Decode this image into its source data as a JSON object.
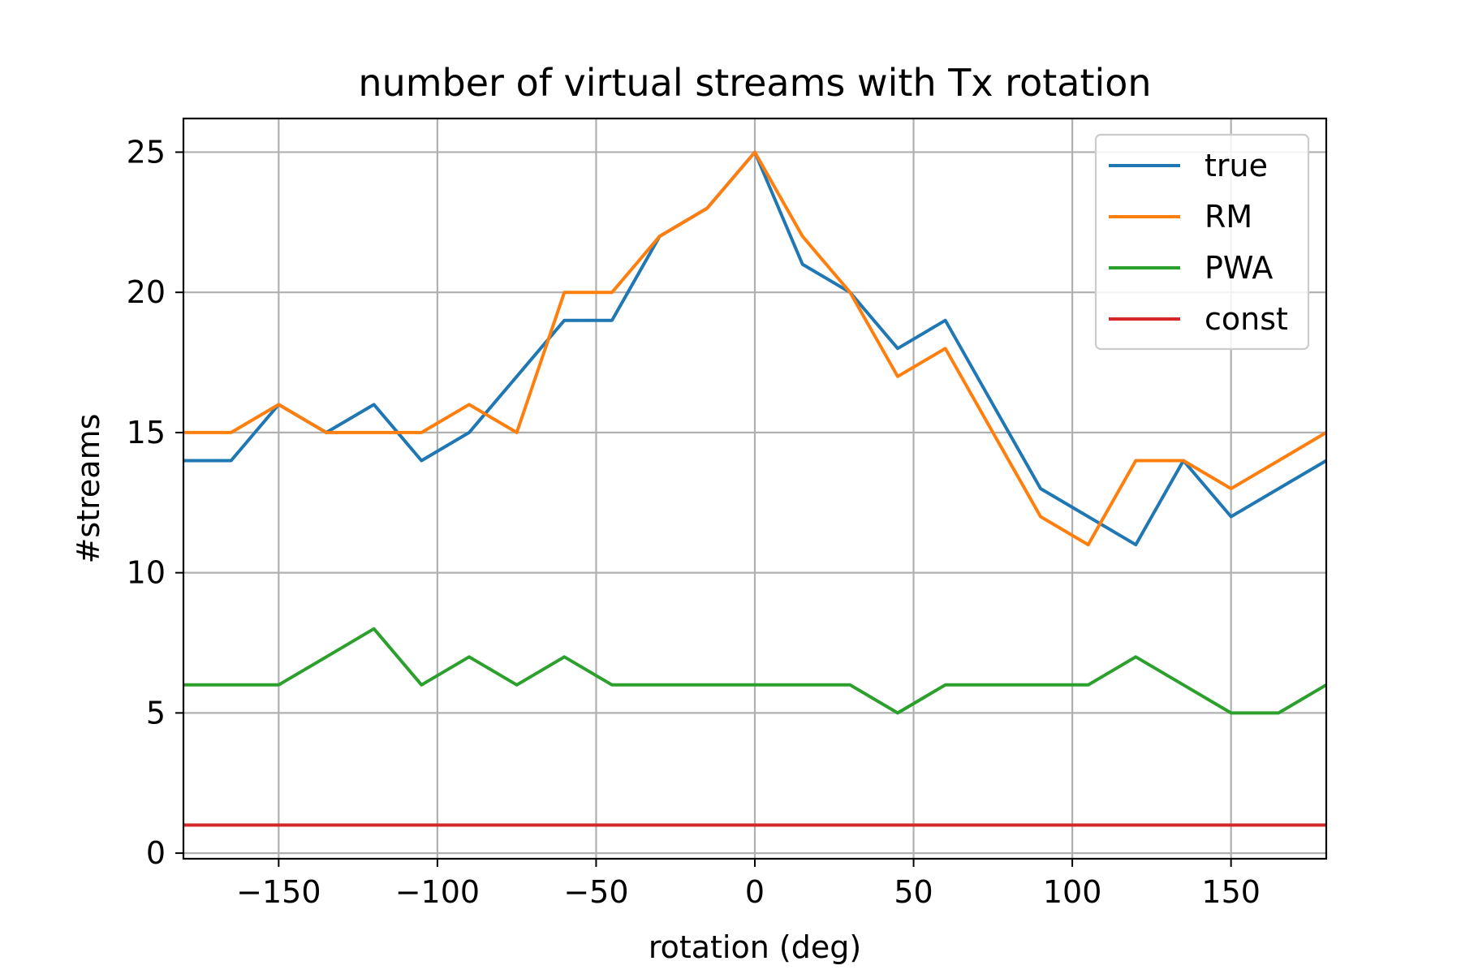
{
  "chart_data": {
    "type": "line",
    "title": "number of virtual streams with Tx rotation",
    "xlabel": "rotation (deg)",
    "ylabel": "#streams",
    "xlim": [
      -180,
      180
    ],
    "ylim": [
      -0.2,
      26.2
    ],
    "xticks": [
      -150,
      -100,
      -50,
      0,
      50,
      100,
      150
    ],
    "xtick_labels": [
      "−150",
      "−100",
      "−50",
      "0",
      "50",
      "100",
      "150"
    ],
    "yticks": [
      0,
      5,
      10,
      15,
      20,
      25
    ],
    "ytick_labels": [
      "0",
      "5",
      "10",
      "15",
      "20",
      "25"
    ],
    "grid": true,
    "legend_position": "top-right",
    "x": [
      -180,
      -165,
      -150,
      -135,
      -120,
      -105,
      -90,
      -75,
      -60,
      -45,
      -30,
      -15,
      0,
      15,
      30,
      45,
      60,
      75,
      90,
      105,
      120,
      135,
      150,
      165,
      180
    ],
    "series": [
      {
        "name": "true",
        "color": "#1f77b4",
        "values": [
          14,
          14,
          16,
          15,
          16,
          14,
          15,
          17,
          19,
          19,
          22,
          23,
          25,
          21,
          20,
          18,
          19,
          16,
          13,
          12,
          11,
          14,
          12,
          13,
          14
        ]
      },
      {
        "name": "RM",
        "color": "#ff7f0e",
        "values": [
          15,
          15,
          16,
          15,
          15,
          15,
          16,
          15,
          20,
          20,
          22,
          23,
          25,
          22,
          20,
          17,
          18,
          15,
          12,
          11,
          14,
          14,
          13,
          14,
          15
        ]
      },
      {
        "name": "PWA",
        "color": "#2ca02c",
        "values": [
          6,
          6,
          6,
          7,
          8,
          6,
          7,
          6,
          7,
          6,
          6,
          6,
          6,
          6,
          6,
          5,
          6,
          6,
          6,
          6,
          7,
          6,
          5,
          5,
          6
        ]
      },
      {
        "name": "const",
        "color": "#d62728",
        "values": [
          1,
          1,
          1,
          1,
          1,
          1,
          1,
          1,
          1,
          1,
          1,
          1,
          1,
          1,
          1,
          1,
          1,
          1,
          1,
          1,
          1,
          1,
          1,
          1,
          1
        ]
      }
    ]
  }
}
